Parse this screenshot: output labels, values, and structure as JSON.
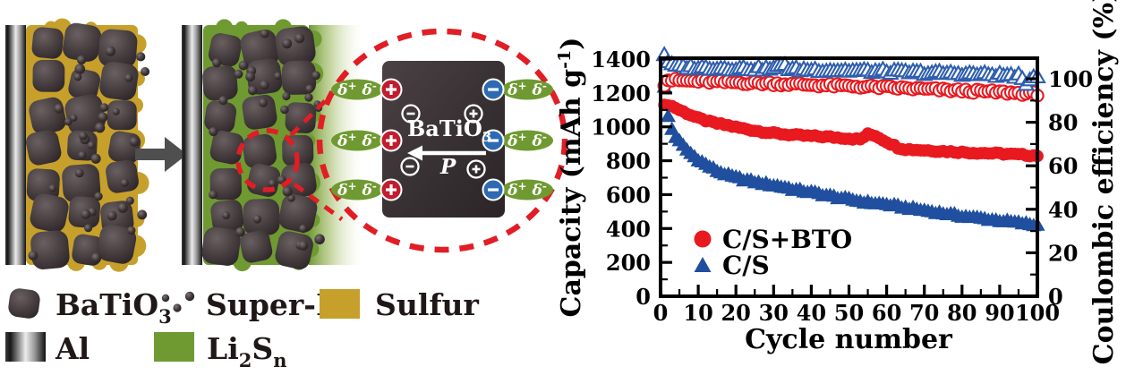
{
  "colors": {
    "sulfur": "#c6a02b",
    "li2sn": "#6f9a31",
    "dash_red": "#e11d25",
    "chart_red": "#e8191f",
    "chart_blue": "#1f4f9e",
    "plus_circle": "#c01d2e",
    "minus_circle": "#2d6ab1",
    "particle_dark": "#3a3234",
    "arrow_gray": "#4f4f4f"
  },
  "legend_panel": {
    "batio3": {
      "main": "BaTiO",
      "sub": "3"
    },
    "superp": "Super-P",
    "sulfur": "Sulfur",
    "al": "Al",
    "li2sn": {
      "t1": "Li",
      "s1": "2",
      "t2": "S",
      "s2": "n"
    }
  },
  "magnifier": {
    "particle": {
      "main": "BaTiO",
      "sub": "3"
    },
    "polarization": "P",
    "dipole": {
      "d": "δ",
      "plus": "+",
      "minus": "-"
    }
  },
  "chart_data": {
    "type": "scatter",
    "title": "",
    "xlabel": "Cycle number",
    "ylabel_left": {
      "main": "Capacity (mAh g",
      "sup": "-1",
      "close": ")"
    },
    "ylabel_right": "Coulombic efficiency (%)",
    "xlim": [
      0,
      100
    ],
    "ylim_left": [
      0,
      1400
    ],
    "ylim_right": [
      0,
      110
    ],
    "x_ticks": [
      0,
      10,
      20,
      30,
      40,
      50,
      60,
      70,
      80,
      90,
      100
    ],
    "y_ticks_left": [
      0,
      200,
      400,
      600,
      800,
      1000,
      1200,
      1400
    ],
    "y_ticks_right": [
      0,
      20,
      40,
      60,
      80,
      100
    ],
    "grid": false,
    "legend_position": "inside lower-left",
    "legend": [
      {
        "label": "C/S+BTO",
        "marker": "circle",
        "color": "#e8191f"
      },
      {
        "label": "C/S",
        "marker": "triangle",
        "color": "#1f4f9e"
      }
    ],
    "series": [
      {
        "name": "C/S+BTO capacity",
        "axis": "left",
        "marker": "circle",
        "style": "filled",
        "color": "#e8191f",
        "spread": 12,
        "x": [
          1,
          2,
          3,
          4,
          5,
          7,
          10,
          13,
          15,
          18,
          20,
          25,
          30,
          35,
          40,
          45,
          50,
          53,
          55,
          57,
          60,
          63,
          65,
          70,
          75,
          80,
          85,
          90,
          95,
          100
        ],
        "y": [
          1125,
          1132,
          1122,
          1112,
          1100,
          1080,
          1050,
          1030,
          1020,
          1008,
          998,
          978,
          962,
          952,
          945,
          940,
          932,
          926,
          956,
          948,
          912,
          878,
          868,
          862,
          856,
          850,
          846,
          842,
          836,
          830
        ]
      },
      {
        "name": "C/S capacity",
        "axis": "left",
        "marker": "triangle",
        "style": "filled",
        "color": "#1f4f9e",
        "spread": 16,
        "x": [
          1,
          2,
          3,
          4,
          5,
          6,
          7,
          8,
          9,
          10,
          12,
          15,
          18,
          20,
          25,
          30,
          33,
          35,
          40,
          45,
          50,
          55,
          60,
          65,
          70,
          75,
          80,
          85,
          90,
          95,
          100
        ],
        "y": [
          1230,
          1060,
          985,
          940,
          912,
          886,
          862,
          842,
          822,
          806,
          776,
          738,
          712,
          698,
          673,
          653,
          642,
          630,
          612,
          590,
          570,
          552,
          540,
          522,
          505,
          488,
          472,
          458,
          445,
          432,
          417
        ]
      },
      {
        "name": "C/S+BTO coulombic efficiency",
        "axis": "right",
        "marker": "circle",
        "style": "open",
        "color": "#e8191f",
        "spread": 1.6,
        "x": [
          1,
          2,
          5,
          10,
          20,
          30,
          40,
          50,
          60,
          70,
          80,
          90,
          95,
          100
        ],
        "y": [
          97.5,
          99.5,
          99.2,
          98.8,
          98.3,
          97.8,
          97.2,
          96.6,
          96.0,
          95.2,
          94.5,
          93.8,
          93.4,
          93.0
        ]
      },
      {
        "name": "C/S coulombic efficiency",
        "axis": "right",
        "marker": "triangle",
        "style": "open",
        "color": "#2f5fae",
        "spread": 1.8,
        "x": [
          1,
          2,
          3,
          5,
          10,
          20,
          30,
          33,
          34,
          40,
          50,
          60,
          70,
          80,
          90,
          95,
          96,
          97,
          98,
          100
        ],
        "y": [
          111,
          108,
          106,
          105.5,
          105,
          104.6,
          104.4,
          107,
          104.2,
          104,
          103.6,
          103.2,
          102.6,
          102.2,
          101.6,
          101.2,
          99,
          97,
          100,
          101.5
        ]
      }
    ]
  }
}
